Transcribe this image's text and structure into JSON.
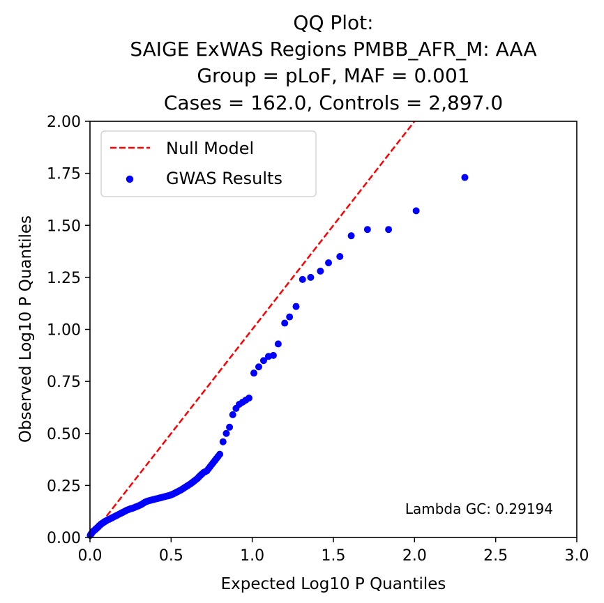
{
  "chart_data": {
    "type": "scatter",
    "title_lines": [
      "QQ Plot:",
      "SAIGE ExWAS Regions PMBB_AFR_M: AAA",
      "Group = pLoF, MAF = 0.001",
      "Cases = 162.0, Controls = 2,897.0"
    ],
    "xlabel": "Expected Log10 P Quantiles",
    "ylabel": "Observed Log10 P Quantiles",
    "xlim": [
      0,
      3
    ],
    "ylim": [
      0,
      2
    ],
    "xticks": [
      "0.0",
      "0.5",
      "1.0",
      "1.5",
      "2.0",
      "2.5",
      "3.0"
    ],
    "yticks": [
      "0.00",
      "0.25",
      "0.50",
      "0.75",
      "1.00",
      "1.25",
      "1.50",
      "1.75",
      "2.00"
    ],
    "grid": false,
    "legend_position": "top-left",
    "annotation": "Lambda GC: 0.29194",
    "colors": {
      "null_line": "#ff0000",
      "points": "#0000ff"
    },
    "series": [
      {
        "name": "Null Model",
        "kind": "line",
        "style": "dashed",
        "x": [
          0,
          3
        ],
        "y": [
          0,
          3
        ]
      },
      {
        "name": "GWAS Results",
        "kind": "scatter",
        "x": [
          0.002,
          0.005,
          0.01,
          0.015,
          0.02,
          0.025,
          0.03,
          0.035,
          0.04,
          0.045,
          0.05,
          0.055,
          0.06,
          0.065,
          0.07,
          0.075,
          0.08,
          0.085,
          0.09,
          0.095,
          0.1,
          0.11,
          0.12,
          0.13,
          0.14,
          0.15,
          0.16,
          0.17,
          0.18,
          0.19,
          0.2,
          0.21,
          0.22,
          0.23,
          0.24,
          0.25,
          0.26,
          0.27,
          0.28,
          0.29,
          0.3,
          0.31,
          0.32,
          0.33,
          0.34,
          0.35,
          0.36,
          0.37,
          0.38,
          0.39,
          0.4,
          0.41,
          0.42,
          0.43,
          0.44,
          0.45,
          0.46,
          0.47,
          0.48,
          0.49,
          0.5,
          0.51,
          0.52,
          0.53,
          0.54,
          0.55,
          0.56,
          0.57,
          0.58,
          0.59,
          0.6,
          0.61,
          0.62,
          0.63,
          0.64,
          0.65,
          0.66,
          0.67,
          0.68,
          0.69,
          0.7,
          0.71,
          0.72,
          0.73,
          0.74,
          0.75,
          0.76,
          0.77,
          0.78,
          0.79,
          0.8,
          0.82,
          0.84,
          0.86,
          0.88,
          0.9,
          0.92,
          0.94,
          0.96,
          0.98,
          1.01,
          1.04,
          1.07,
          1.1,
          1.13,
          1.16,
          1.2,
          1.23,
          1.27,
          1.31,
          1.36,
          1.42,
          1.47,
          1.54,
          1.61,
          1.71,
          1.84,
          2.01,
          2.31
        ],
        "y": [
          0.01,
          0.015,
          0.02,
          0.025,
          0.03,
          0.033,
          0.036,
          0.04,
          0.043,
          0.047,
          0.05,
          0.055,
          0.058,
          0.062,
          0.065,
          0.068,
          0.07,
          0.073,
          0.076,
          0.078,
          0.08,
          0.085,
          0.088,
          0.092,
          0.096,
          0.1,
          0.104,
          0.108,
          0.112,
          0.116,
          0.12,
          0.124,
          0.128,
          0.132,
          0.135,
          0.138,
          0.14,
          0.143,
          0.146,
          0.149,
          0.152,
          0.156,
          0.16,
          0.165,
          0.17,
          0.173,
          0.176,
          0.178,
          0.18,
          0.182,
          0.184,
          0.186,
          0.188,
          0.19,
          0.192,
          0.194,
          0.196,
          0.198,
          0.2,
          0.202,
          0.205,
          0.208,
          0.212,
          0.216,
          0.22,
          0.224,
          0.228,
          0.233,
          0.238,
          0.243,
          0.248,
          0.253,
          0.258,
          0.264,
          0.27,
          0.276,
          0.282,
          0.29,
          0.298,
          0.305,
          0.312,
          0.316,
          0.32,
          0.33,
          0.34,
          0.35,
          0.36,
          0.37,
          0.38,
          0.39,
          0.4,
          0.46,
          0.5,
          0.53,
          0.59,
          0.62,
          0.64,
          0.65,
          0.66,
          0.67,
          0.79,
          0.82,
          0.85,
          0.87,
          0.875,
          0.93,
          1.03,
          1.06,
          1.11,
          1.24,
          1.25,
          1.28,
          1.32,
          1.35,
          1.45,
          1.48,
          1.48,
          1.57,
          1.73
        ]
      }
    ]
  }
}
